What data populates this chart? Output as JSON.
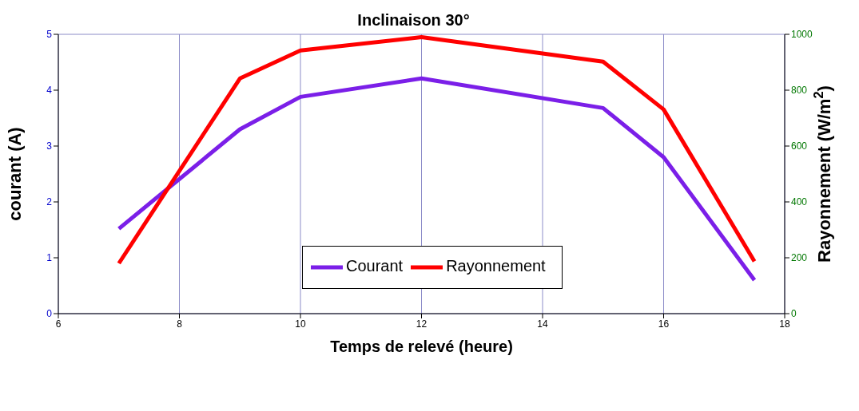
{
  "chart_data": {
    "type": "line",
    "title": "Inclinaison 30°",
    "xlabel": "Temps de relevé (heure)",
    "ylabel": "courant (A)",
    "y2label": "Rayonnement (W/m$^{2}$)",
    "x": [
      7,
      9,
      10,
      12,
      15,
      16,
      17.5
    ],
    "series": [
      {
        "name": "Courant",
        "color": "#7b1fe8",
        "values": [
          1.52,
          3.3,
          3.88,
          4.21,
          3.68,
          2.8,
          0.6
        ]
      },
      {
        "name": "Rayonnement",
        "color": "#ff0000",
        "values": [
          180,
          842,
          942,
          990,
          902,
          731,
          187
        ],
        "axis": "y2"
      }
    ],
    "xlim": [
      6,
      18
    ],
    "xticks": [
      6,
      8,
      10,
      12,
      14,
      16,
      18
    ],
    "ylim": [
      0,
      5
    ],
    "yticks": [
      0,
      1,
      2,
      3,
      4,
      5
    ],
    "y2lim": [
      0,
      1000
    ],
    "y2ticks": [
      0,
      200,
      400,
      600,
      800,
      1000
    ],
    "grid": true,
    "legend": "center",
    "marker": "none",
    "line_style": "solid"
  }
}
